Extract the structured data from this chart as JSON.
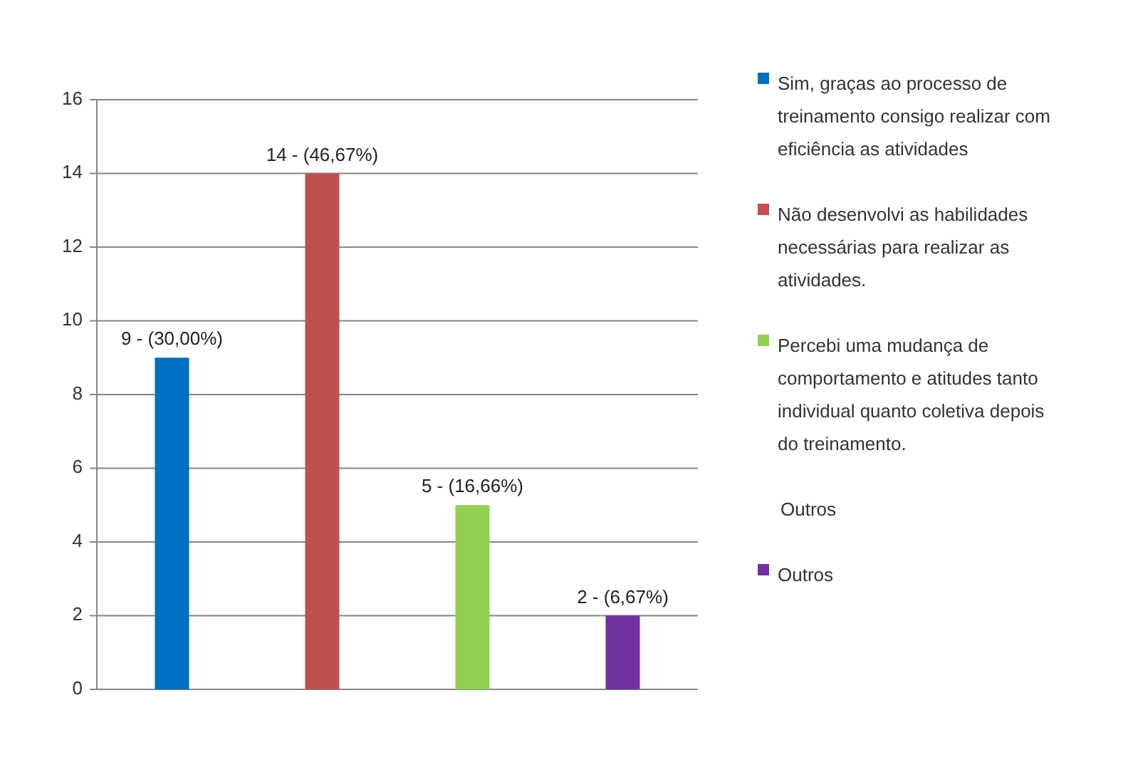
{
  "chart_data": {
    "type": "bar",
    "categories": [
      null,
      null,
      null,
      null
    ],
    "series": [
      {
        "name": "Sim, graças ao processo de treinamento consigo realizar com eficiência as atividades",
        "color": "#0070c0",
        "values": [
          9,
          null,
          null,
          null
        ],
        "value_labels": [
          "9 - (30,00%)",
          null,
          null,
          null
        ]
      },
      {
        "name": "Não desenvolvi as habilidades necessárias para realizar as atividades.",
        "color": "#c0504d",
        "values": [
          null,
          14,
          null,
          null
        ],
        "value_labels": [
          null,
          "14 - (46,67%)",
          null,
          null
        ]
      },
      {
        "name": "Percebi uma mudança de comportamento e atitudes tanto individual quanto coletiva depois do treinamento.",
        "color": "#92d050",
        "values": [
          null,
          null,
          5,
          null
        ],
        "value_labels": [
          null,
          null,
          "5 - (16,66%)",
          null
        ]
      },
      {
        "name": "Outros",
        "color": "#7030a0",
        "values": [
          null,
          null,
          null,
          2
        ],
        "value_labels": [
          null,
          null,
          null,
          "2 - (6,67%)"
        ]
      }
    ],
    "annotations": [
      "Outros"
    ],
    "ylim": [
      0,
      16
    ],
    "yticks": [
      0,
      2,
      4,
      6,
      8,
      10,
      12,
      14,
      16
    ],
    "grid": "y",
    "legend": "right"
  }
}
